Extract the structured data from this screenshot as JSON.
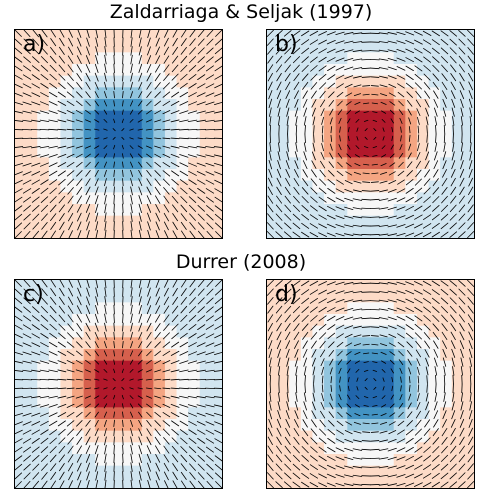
{
  "titles": {
    "top": "Zaldarriaga & Seljak (1997)",
    "bottom": "Durrer (2008)"
  },
  "panels": [
    {
      "label": "a)",
      "pattern": "radial",
      "center_color": "blue",
      "edge_color": "red"
    },
    {
      "label": "b)",
      "pattern": "tangential",
      "center_color": "red",
      "edge_color": "blue"
    },
    {
      "label": "c)",
      "pattern": "radial",
      "center_color": "red",
      "edge_color": "blue"
    },
    {
      "label": "d)",
      "pattern": "tangential",
      "center_color": "blue",
      "edge_color": "red"
    }
  ],
  "colors": {
    "red_strong": "#b2182b",
    "red_mid": "#d6604d",
    "red_light": "#f4a582",
    "red_pale": "#fddbc7",
    "neutral": "#f7f7f7",
    "blue_pale": "#d1e5f0",
    "blue_light": "#92c5de",
    "blue_mid": "#4393c3",
    "blue_strong": "#2166ac",
    "line": "#000000"
  }
}
